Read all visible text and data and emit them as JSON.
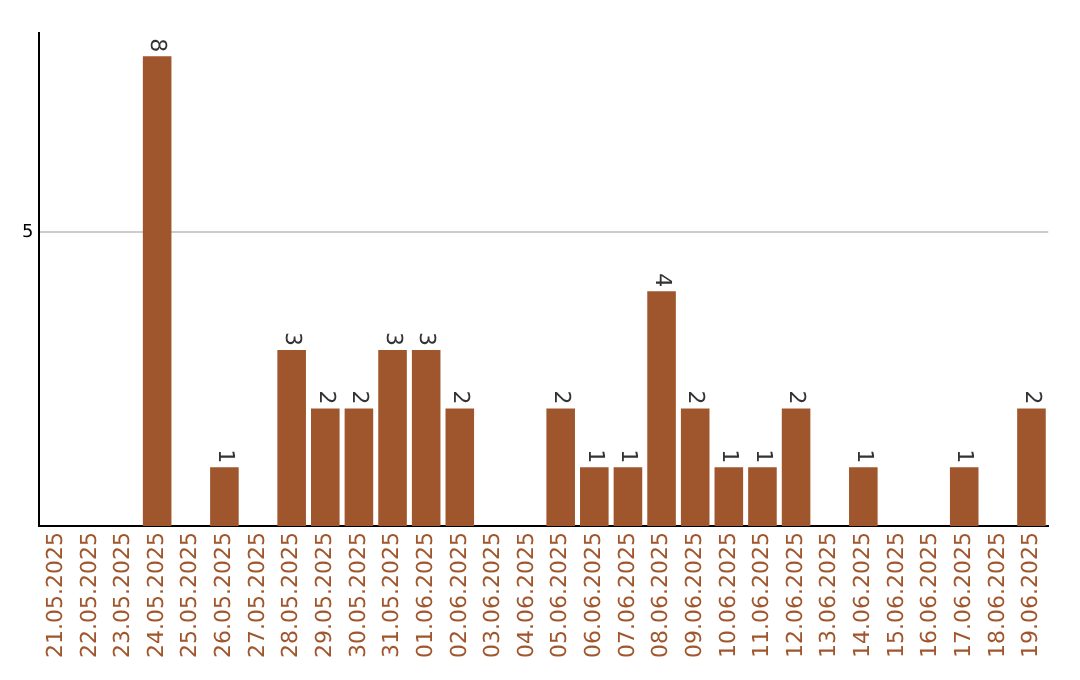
{
  "chart_data": {
    "type": "bar",
    "categories": [
      "21.05.2025",
      "22.05.2025",
      "23.05.2025",
      "24.05.2025",
      "25.05.2025",
      "26.05.2025",
      "27.05.2025",
      "28.05.2025",
      "29.05.2025",
      "30.05.2025",
      "31.05.2025",
      "01.06.2025",
      "02.06.2025",
      "03.06.2025",
      "04.06.2025",
      "05.06.2025",
      "06.06.2025",
      "07.06.2025",
      "08.06.2025",
      "09.06.2025",
      "10.06.2025",
      "11.06.2025",
      "12.06.2025",
      "13.06.2025",
      "14.06.2025",
      "15.06.2025",
      "16.06.2025",
      "17.06.2025",
      "18.06.2025",
      "19.06.2025"
    ],
    "values": [
      0,
      0,
      0,
      8,
      0,
      1,
      0,
      3,
      2,
      2,
      3,
      3,
      2,
      0,
      0,
      2,
      1,
      1,
      4,
      2,
      1,
      1,
      2,
      0,
      1,
      0,
      0,
      1,
      0,
      2
    ],
    "value_labels": [
      null,
      null,
      null,
      "8",
      null,
      "1",
      null,
      "3",
      "2",
      "2",
      "3",
      "3",
      "2",
      null,
      null,
      "2",
      "1",
      "1",
      "4",
      "2",
      "1",
      "1",
      "2",
      null,
      "1",
      null,
      null,
      "1",
      null,
      "2"
    ],
    "color": "#a0562c",
    "ylim": [
      0,
      8.4
    ],
    "yticks": [
      5
    ],
    "grid": "y"
  }
}
